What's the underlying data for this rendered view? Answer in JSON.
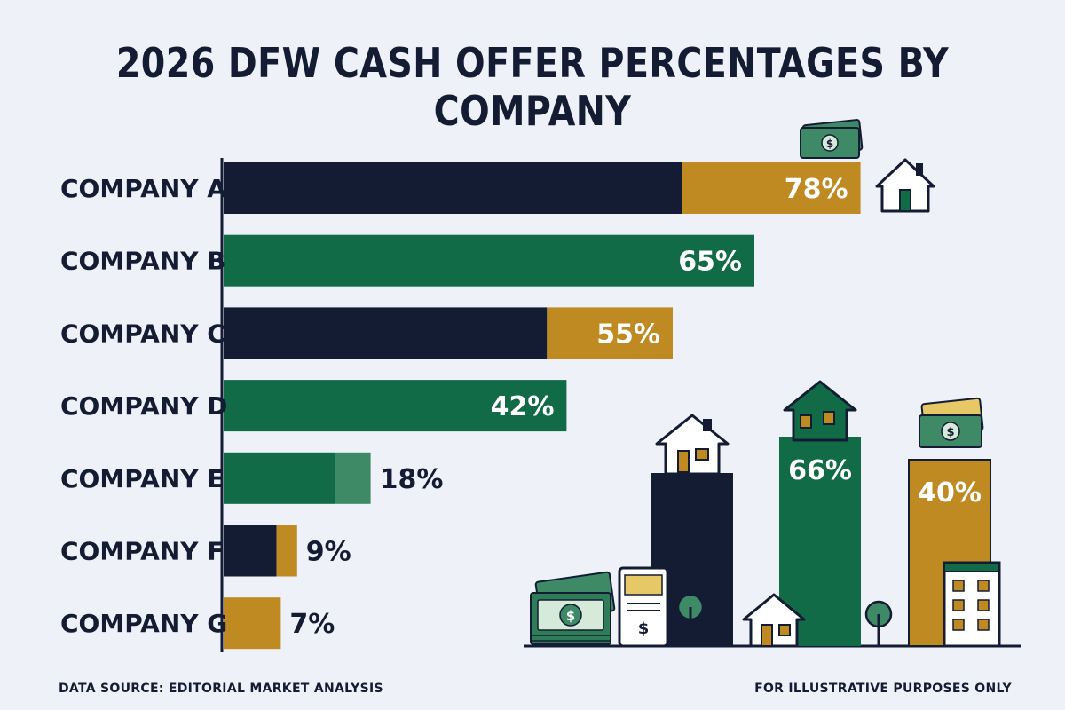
{
  "colors": {
    "background": "#eef1f8",
    "navy": "#141c33",
    "green": "#126b47",
    "green_light": "#3e8a66",
    "gold": "#bf8a22",
    "ink": "#141c33",
    "white": "#ffffff"
  },
  "chart_data": {
    "type": "bar",
    "orientation": "horizontal",
    "title": "2026 DFW CASH OFFER PERCENTAGES BY COMPANY",
    "categories": [
      "COMPANY A",
      "COMPANY B",
      "COMPANY C",
      "COMPANY D",
      "COMPANY E",
      "COMPANY F",
      "COMPANY G"
    ],
    "values": [
      78,
      65,
      55,
      42,
      18,
      9,
      7
    ],
    "value_labels": [
      "78%",
      "65%",
      "55%",
      "42%",
      "18%",
      "9%",
      "7%"
    ],
    "bar_colors": [
      "navy+gold",
      "green",
      "navy+gold",
      "green",
      "green+light-green",
      "navy+gold",
      "gold"
    ],
    "unit": "%",
    "grid": false,
    "legend": "none"
  },
  "illustration": {
    "columns": [
      {
        "label": "",
        "color": "navy",
        "icon": "house-icon"
      },
      {
        "label": "66%",
        "color": "green",
        "icon": "house-icon"
      },
      {
        "label": "40%",
        "color": "gold",
        "icon": "cash-icon"
      }
    ],
    "icons": [
      "cash-stack-icon",
      "check-icon",
      "tree-icon",
      "small-house-icon",
      "apartment-icon",
      "house-outline-icon"
    ]
  },
  "footer": {
    "source": "DATA SOURCE: EDITORIAL MARKET ANALYSIS",
    "disclaimer": "FOR ILLUSTRATIVE PURPOSES ONLY"
  }
}
